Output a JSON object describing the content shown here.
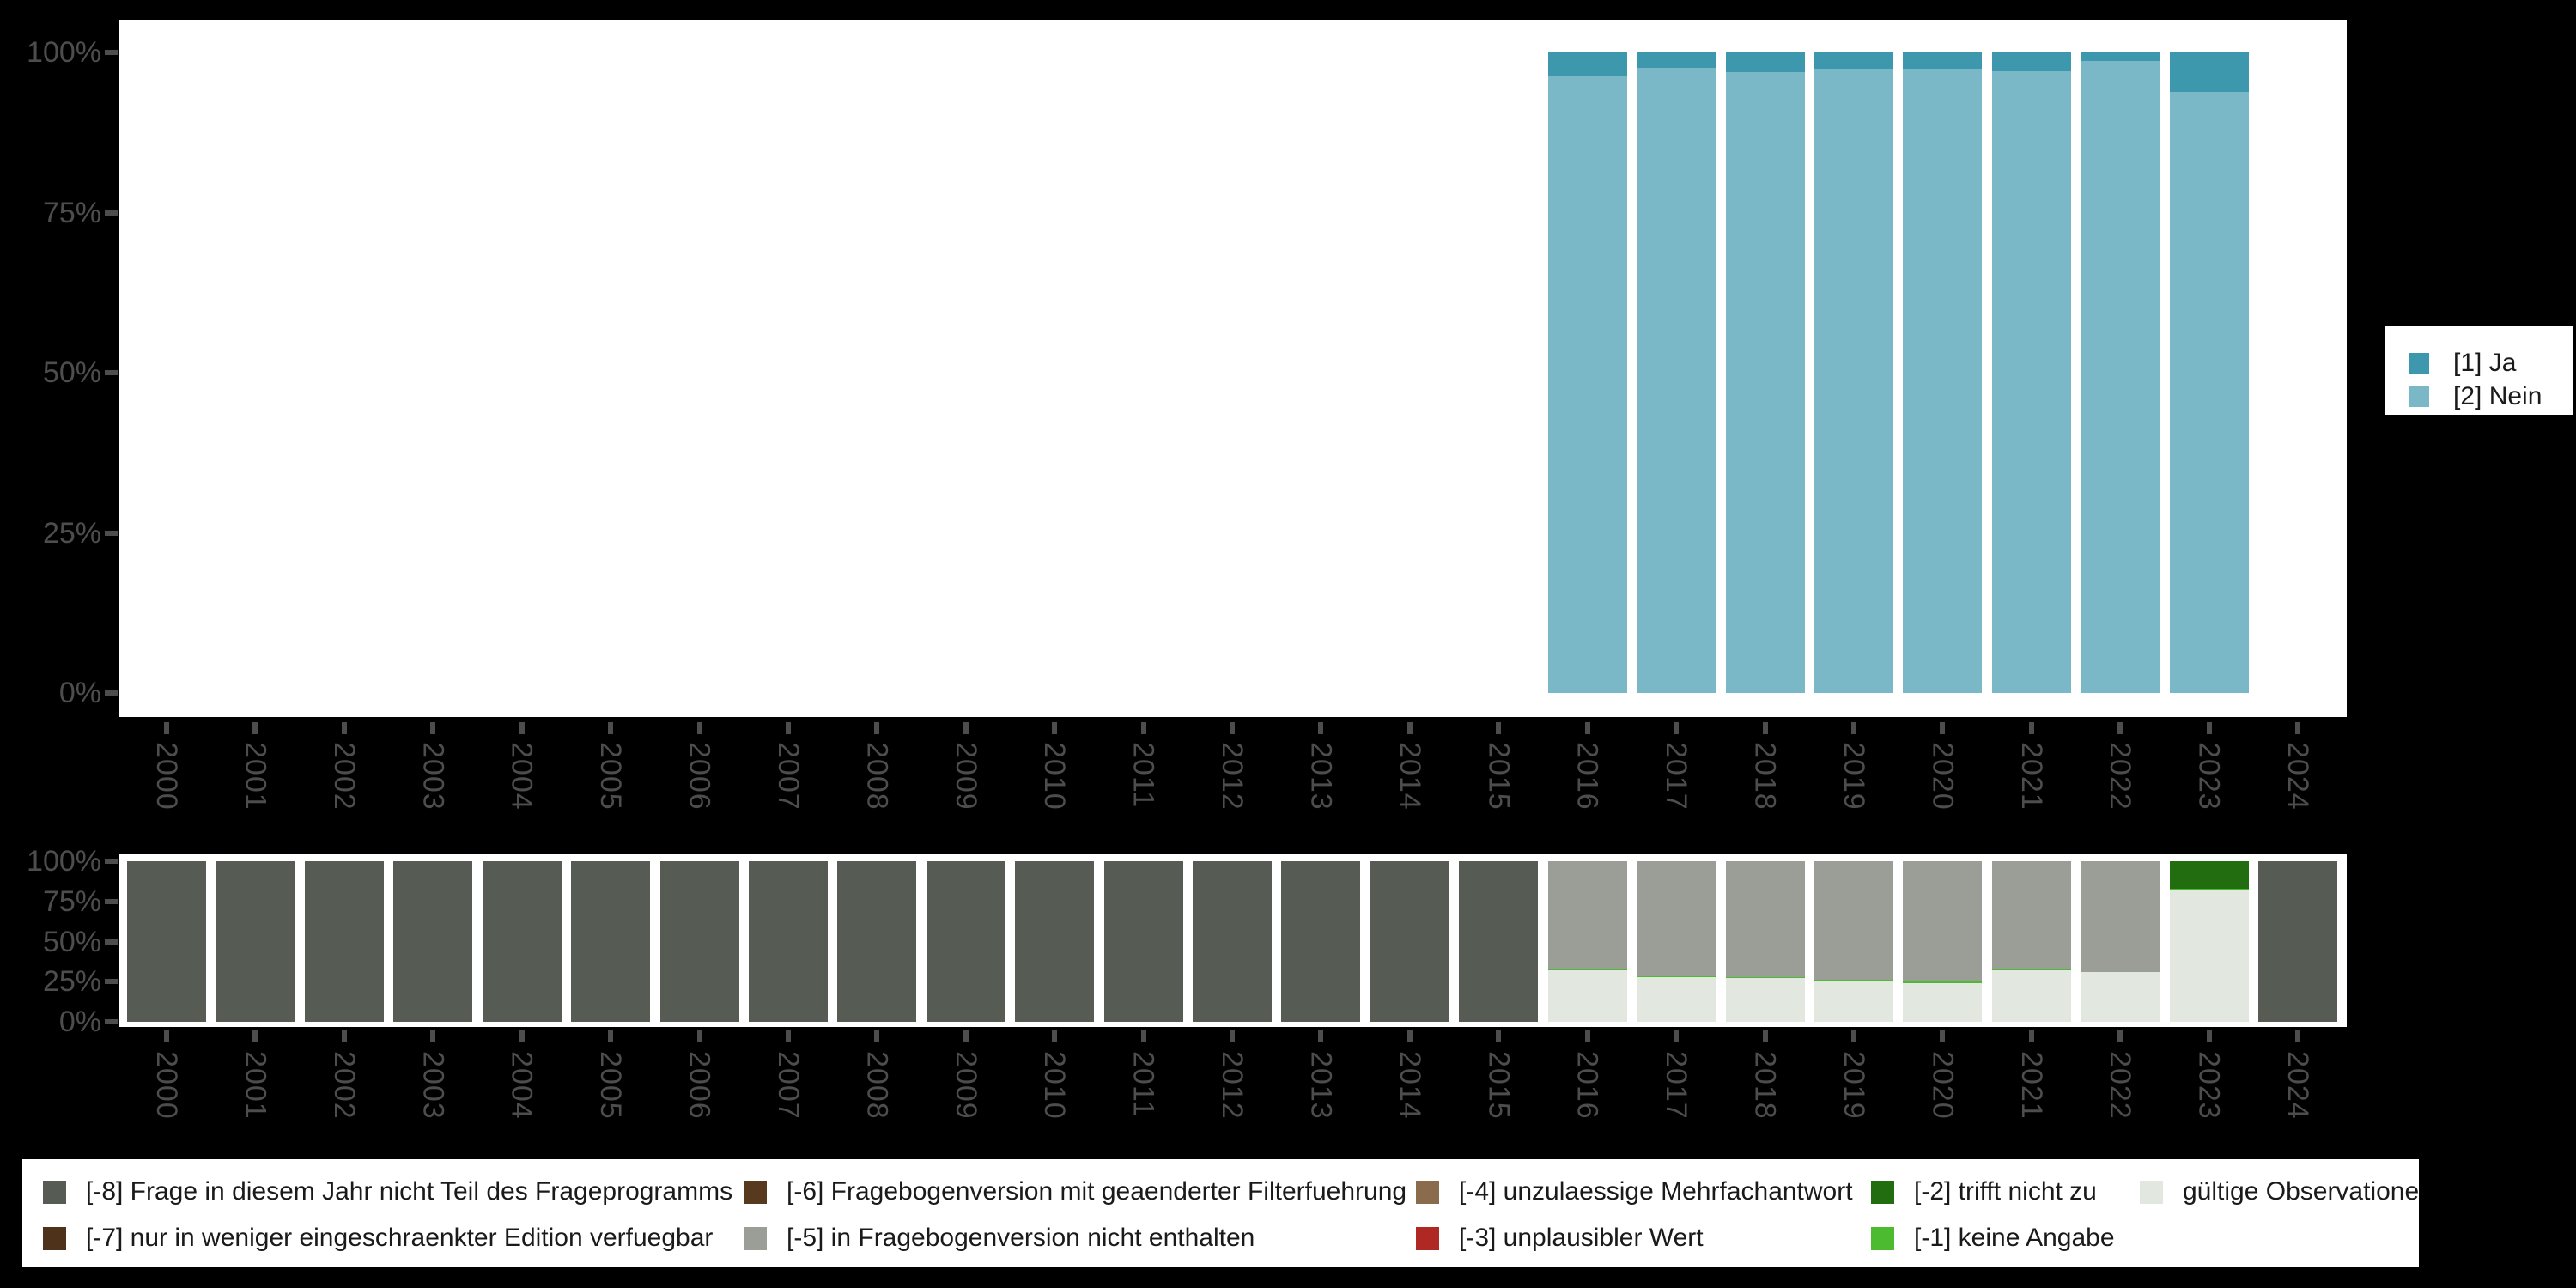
{
  "background_color": "#000000",
  "chart_data": [
    {
      "type": "bar",
      "stacked": true,
      "percent_scale": true,
      "title": "",
      "xlabel": "",
      "ylabel": "",
      "ylim": [
        0,
        100
      ],
      "grid": false,
      "legend_position": "right",
      "categories": [
        "2000",
        "2001",
        "2002",
        "2003",
        "2004",
        "2005",
        "2006",
        "2007",
        "2008",
        "2009",
        "2010",
        "2011",
        "2012",
        "2013",
        "2014",
        "2015",
        "2016",
        "2017",
        "2018",
        "2019",
        "2020",
        "2021",
        "2022",
        "2023",
        "2024"
      ],
      "ytick_labels": [
        "100%",
        "75%",
        "50%",
        "25%",
        "0%"
      ],
      "legend": [
        {
          "label": "[1] Ja",
          "color": "#3D98AE"
        },
        {
          "label": "[2] Nein",
          "color": "#7AB8C7"
        }
      ],
      "series": [
        {
          "name": "[1] Ja",
          "color": "#3D98AE",
          "values": {
            "2016": 3.8,
            "2017": 2.4,
            "2018": 3.1,
            "2019": 2.5,
            "2020": 2.6,
            "2021": 2.9,
            "2022": 1.3,
            "2023": 6.1
          }
        },
        {
          "name": "[2] Nein",
          "color": "#7AB8C7",
          "values": {
            "2016": 96.2,
            "2017": 97.6,
            "2018": 96.9,
            "2019": 97.5,
            "2020": 97.4,
            "2021": 97.1,
            "2022": 98.7,
            "2023": 93.9
          }
        }
      ]
    },
    {
      "type": "bar",
      "stacked": true,
      "percent_scale": true,
      "title": "",
      "xlabel": "",
      "ylabel": "",
      "ylim": [
        0,
        100
      ],
      "grid": false,
      "legend_position": "bottom",
      "categories": [
        "2000",
        "2001",
        "2002",
        "2003",
        "2004",
        "2005",
        "2006",
        "2007",
        "2008",
        "2009",
        "2010",
        "2011",
        "2012",
        "2013",
        "2014",
        "2015",
        "2016",
        "2017",
        "2018",
        "2019",
        "2020",
        "2021",
        "2022",
        "2023",
        "2024"
      ],
      "ytick_labels": [
        "100%",
        "75%",
        "50%",
        "25%",
        "0%"
      ],
      "legend": [
        {
          "label": "[-8] Frage in diesem Jahr nicht Teil des Frageprogramms",
          "color": "#565B54"
        },
        {
          "label": "[-7] nur in weniger eingeschraenkter Edition verfuegbar",
          "color": "#4E331A"
        },
        {
          "label": "[-6] Fragebogenversion mit geaenderter Filterfuehrung",
          "color": "#573A1D"
        },
        {
          "label": "[-5] in Fragebogenversion nicht enthalten",
          "color": "#9A9E96"
        },
        {
          "label": "[-4] unzulaessige Mehrfachantwort",
          "color": "#8A6C4C"
        },
        {
          "label": "[-3] unplausibler Wert",
          "color": "#B02823"
        },
        {
          "label": "[-2] trifft nicht zu",
          "color": "#216D0F"
        },
        {
          "label": "[-1] keine Angabe",
          "color": "#4CBB30"
        },
        {
          "label": "gültige Observationen",
          "color": "#E2E7DF"
        }
      ],
      "series": [
        {
          "name": "[-8] Frage in diesem Jahr nicht Teil des Frageprogramms",
          "color": "#565B54",
          "values": {
            "2000": 100,
            "2001": 100,
            "2002": 100,
            "2003": 100,
            "2004": 100,
            "2005": 100,
            "2006": 100,
            "2007": 100,
            "2008": 100,
            "2009": 100,
            "2010": 100,
            "2011": 100,
            "2012": 100,
            "2013": 100,
            "2014": 100,
            "2015": 100,
            "2024": 100
          }
        },
        {
          "name": "[-5] in Fragebogenversion nicht enthalten",
          "color": "#9A9E96",
          "values": {
            "2016": 67.2,
            "2017": 71.5,
            "2018": 72.0,
            "2019": 74.0,
            "2020": 75.1,
            "2021": 67.1,
            "2022": 69.1
          }
        },
        {
          "name": "[-2] trifft nicht zu",
          "color": "#216D0F",
          "values": {
            "2023": 17.0
          }
        },
        {
          "name": "[-1] keine Angabe",
          "color": "#4CBB30",
          "values": {
            "2016": 0.9,
            "2017": 0.8,
            "2018": 0.8,
            "2019": 0.8,
            "2020": 0.8,
            "2021": 0.9,
            "2023": 1.1
          }
        },
        {
          "name": "gültige Observationen",
          "color": "#E2E7DF",
          "values": {
            "2016": 31.9,
            "2017": 27.7,
            "2018": 27.2,
            "2019": 25.2,
            "2020": 24.1,
            "2021": 32.0,
            "2022": 30.9,
            "2023": 81.9
          }
        }
      ]
    }
  ]
}
